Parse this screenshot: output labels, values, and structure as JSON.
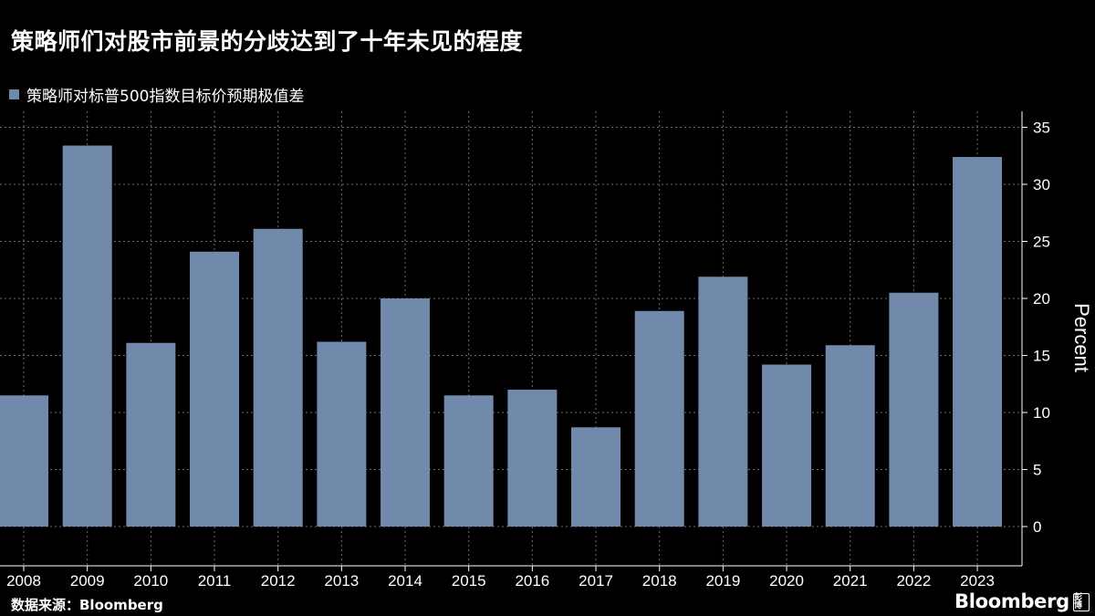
{
  "title": "策略师们对股市前景的分歧达到了十年未见的程度",
  "legend": {
    "label": "策略师对标普500指数目标价预期极值差"
  },
  "footer": {
    "source": "数据来源：Bloomberg",
    "brand": "Bloomberg",
    "badge": "彭博"
  },
  "colors": {
    "background": "#000000",
    "bar": "#7189ab",
    "grid": "#6e6e6e",
    "text": "#ffffff"
  },
  "chart_data": {
    "type": "bar",
    "categories": [
      "2008",
      "2009",
      "2010",
      "2011",
      "2012",
      "2013",
      "2014",
      "2015",
      "2016",
      "2017",
      "2018",
      "2019",
      "2020",
      "2021",
      "2022",
      "2023"
    ],
    "series": [
      {
        "name": "策略师对标普500指数目标价预期极值差",
        "values": [
          11.5,
          33.4,
          16.1,
          24.1,
          26.1,
          16.2,
          20.0,
          11.5,
          12.0,
          8.7,
          18.9,
          21.9,
          14.2,
          15.9,
          20.5,
          32.4
        ]
      }
    ],
    "y_ticks": [
      0,
      5,
      10,
      15,
      20,
      25,
      30,
      35
    ],
    "ylim": [
      -3,
      37
    ],
    "ylabel": "Percent",
    "xlabel": "",
    "y_axis_side": "right",
    "grid": true
  }
}
